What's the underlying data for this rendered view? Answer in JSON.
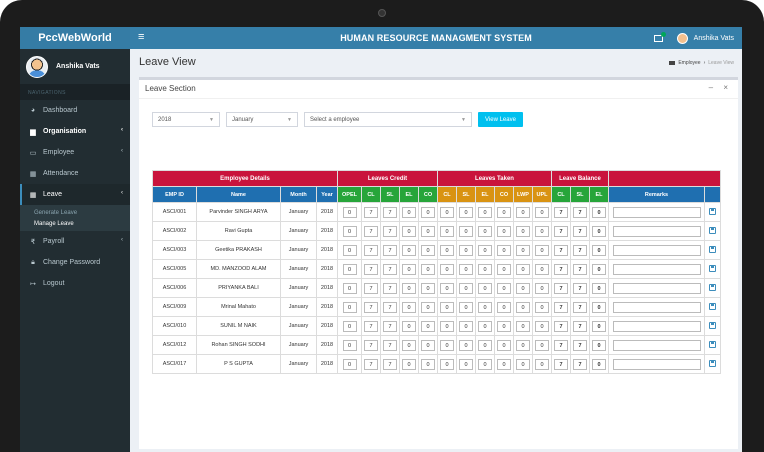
{
  "app": {
    "brand": "PccWebWorld",
    "system_title": "HUMAN RESOURCE MANAGMENT SYSTEM",
    "user_name": "Anshika Vats"
  },
  "sidebar": {
    "user_name": "Anshika Vats",
    "nav_header": "NAVIGATIONS",
    "items": [
      {
        "label": "Dashboard",
        "icon": "dashboard-icon"
      },
      {
        "label": "Organisation",
        "icon": "briefcase-icon",
        "chevron": "‹"
      },
      {
        "label": "Employee",
        "icon": "id-card-icon",
        "chevron": "‹"
      },
      {
        "label": "Attendance",
        "icon": "calendar-icon"
      },
      {
        "label": "Leave",
        "icon": "calendar-icon",
        "chevron": "‹"
      },
      {
        "label": "Payroll",
        "icon": "rupee-icon",
        "chevron": "‹"
      },
      {
        "label": "Change Password",
        "icon": "lock-icon"
      },
      {
        "label": "Logout",
        "icon": "logout-icon"
      }
    ],
    "leave_submenu": [
      "Generate Leave",
      "Manage Leave"
    ]
  },
  "page": {
    "title": "Leave View",
    "breadcrumb_root": "Employee",
    "breadcrumb_current": "Leave View",
    "box_title": "Leave Section",
    "box_tools": "– ×"
  },
  "filters": {
    "year": "2018",
    "month": "January",
    "employee_placeholder": "Select a employee",
    "view_button": "View Leave"
  },
  "table": {
    "groups": [
      "Employee Details",
      "Leaves Credit",
      "Leaves Taken",
      "Leave Balance"
    ],
    "headers": {
      "details": [
        "EMP ID",
        "Name",
        "Month",
        "Year"
      ],
      "credit": [
        "OPEL",
        "CL",
        "SL",
        "EL",
        "CO"
      ],
      "taken": [
        "CL",
        "SL",
        "EL",
        "CO",
        "LWP",
        "UPL"
      ],
      "balance": [
        "CL",
        "SL",
        "EL"
      ],
      "remarks": "Remarks"
    },
    "rows": [
      {
        "emp_id": "ASCI/001",
        "name": "Parvinder SINGH ARYA",
        "month": "January",
        "year": "2018",
        "credit": [
          "0",
          "7",
          "7",
          "0",
          "0"
        ],
        "taken": [
          "0",
          "0",
          "0",
          "0",
          "0",
          "0"
        ],
        "balance": [
          "7",
          "7",
          "0"
        ]
      },
      {
        "emp_id": "ASCI/002",
        "name": "Ravi Gupta",
        "month": "January",
        "year": "2018",
        "credit": [
          "0",
          "7",
          "7",
          "0",
          "0"
        ],
        "taken": [
          "0",
          "0",
          "0",
          "0",
          "0",
          "0"
        ],
        "balance": [
          "7",
          "7",
          "0"
        ]
      },
      {
        "emp_id": "ASCI/003",
        "name": "Geetika PRAKASH",
        "month": "January",
        "year": "2018",
        "credit": [
          "0",
          "7",
          "7",
          "0",
          "0"
        ],
        "taken": [
          "0",
          "0",
          "0",
          "0",
          "0",
          "0"
        ],
        "balance": [
          "7",
          "7",
          "0"
        ]
      },
      {
        "emp_id": "ASCI/005",
        "name": "MD. MANZOOD ALAM",
        "month": "January",
        "year": "2018",
        "credit": [
          "0",
          "7",
          "7",
          "0",
          "0"
        ],
        "taken": [
          "0",
          "0",
          "0",
          "0",
          "0",
          "0"
        ],
        "balance": [
          "7",
          "7",
          "0"
        ]
      },
      {
        "emp_id": "ASCI/006",
        "name": "PRIYANKA BALI",
        "month": "January",
        "year": "2018",
        "credit": [
          "0",
          "7",
          "7",
          "0",
          "0"
        ],
        "taken": [
          "0",
          "0",
          "0",
          "0",
          "0",
          "0"
        ],
        "balance": [
          "7",
          "7",
          "0"
        ]
      },
      {
        "emp_id": "ASCI/009",
        "name": "Mrinal Mahato",
        "month": "January",
        "year": "2018",
        "credit": [
          "0",
          "7",
          "7",
          "0",
          "0"
        ],
        "taken": [
          "0",
          "0",
          "0",
          "0",
          "0",
          "0"
        ],
        "balance": [
          "7",
          "7",
          "0"
        ]
      },
      {
        "emp_id": "ASCI/010",
        "name": "SUNIL M NAIK",
        "month": "January",
        "year": "2018",
        "credit": [
          "0",
          "7",
          "7",
          "0",
          "0"
        ],
        "taken": [
          "0",
          "0",
          "0",
          "0",
          "0",
          "0"
        ],
        "balance": [
          "7",
          "7",
          "0"
        ]
      },
      {
        "emp_id": "ASCI/012",
        "name": "Rohan SINGH SODHI",
        "month": "January",
        "year": "2018",
        "credit": [
          "0",
          "7",
          "7",
          "0",
          "0"
        ],
        "taken": [
          "0",
          "0",
          "0",
          "0",
          "0",
          "0"
        ],
        "balance": [
          "7",
          "7",
          "0"
        ]
      },
      {
        "emp_id": "ASCI/017",
        "name": "P S GUPTA",
        "month": "January",
        "year": "2018",
        "credit": [
          "0",
          "7",
          "7",
          "0",
          "0"
        ],
        "taken": [
          "0",
          "0",
          "0",
          "0",
          "0",
          "0"
        ],
        "balance": [
          "7",
          "7",
          "0"
        ]
      }
    ]
  },
  "colors": {
    "header_blue": "#367fa9",
    "sidebar_dark": "#222d32",
    "group_red": "#c9143c",
    "sub_blue": "#1f6fb0",
    "sub_green": "#27a53a",
    "sub_orange": "#d99312",
    "button_cyan": "#00c0ef"
  }
}
